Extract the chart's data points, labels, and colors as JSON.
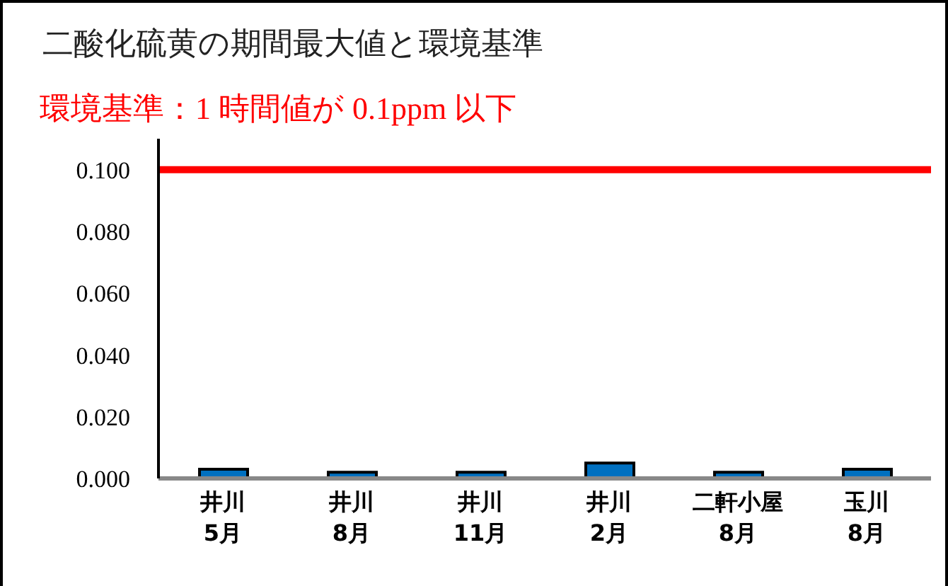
{
  "chart_data": {
    "type": "bar",
    "title": "二酸化硫黄の期間最大値と環境基準",
    "subtitle": "環境基準：1 時間値が 0.1ppm 以下",
    "categories": [
      "井川\n5月",
      "井川\n8月",
      "井川\n11月",
      "井川\n2月",
      "二軒小屋\n8月",
      "玉川\n8月"
    ],
    "values": [
      0.003,
      0.002,
      0.002,
      0.005,
      0.002,
      0.003
    ],
    "color": "#0070c0",
    "ylim": [
      0,
      0.11
    ],
    "yticks": [
      {
        "value": 0,
        "label": "0.000"
      },
      {
        "value": 0.02,
        "label": "0.020"
      },
      {
        "value": 0.04,
        "label": "0.040"
      },
      {
        "value": 0.06,
        "label": "0.060"
      },
      {
        "value": 0.08,
        "label": "0.080"
      },
      {
        "value": 0.1,
        "label": "0.100"
      }
    ],
    "ref_lines": [
      {
        "axis": "y",
        "value": 0.1,
        "color": "#ff0000"
      }
    ],
    "grid": false,
    "legend": false
  }
}
